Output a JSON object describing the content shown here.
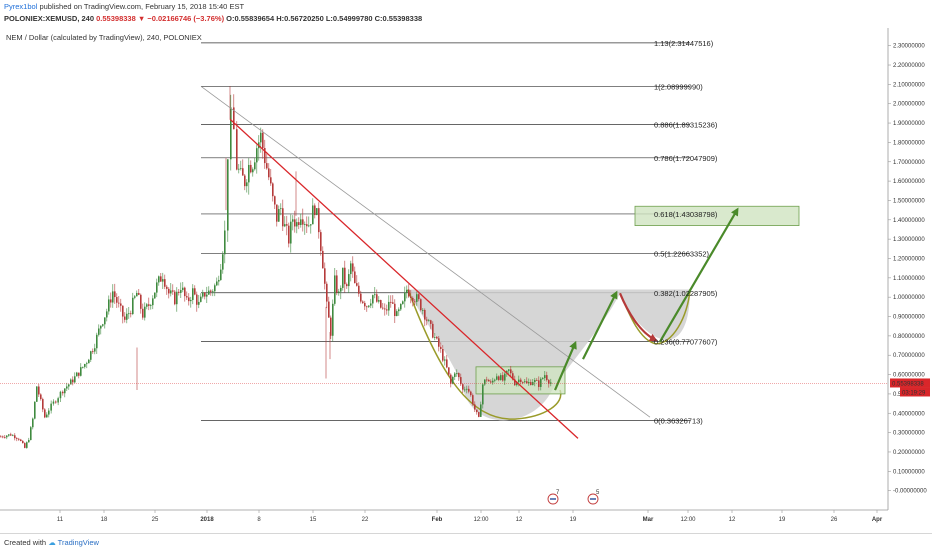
{
  "header": {
    "author": "Pyrex1bol",
    "published": "published on TradingView.com, February 15, 2018 15:40 EST",
    "symbol": "POLONIEX:XEMUSD, 240",
    "change": "0.55398338 ▼ −0.02166746 (−3.76%)",
    "ohlc": "O:0.55839654 H:0.56720250 L:0.54999780 C:0.55398338"
  },
  "footer": {
    "created_with": "Created with",
    "brand": "TradingView"
  },
  "colors": {
    "up": "#3f8a3f",
    "down": "#b53a3a",
    "trend": "#d9262a",
    "arrow": "#4a8a2a",
    "box_fill": "#d2e6c8",
    "cup_fill": "#c8c8c8",
    "fib_line": "#333333"
  },
  "chart_data": {
    "type": "candlestick",
    "title": "NEM / Dollar (calculated by TradingView), 240, POLONIEX",
    "y_axis": {
      "min": -0.1,
      "max": 2.35,
      "ticks": [
        "-0.00000000",
        "0.10000000",
        "0.20000000",
        "0.30000000",
        "0.40000000",
        "0.50000000",
        "0.60000000",
        "0.70000000",
        "0.80000000",
        "0.90000000",
        "1.00000000",
        "1.10000000",
        "1.20000000",
        "1.30000000",
        "1.40000000",
        "1.50000000",
        "1.60000000",
        "1.70000000",
        "1.80000000",
        "1.90000000",
        "2.00000000",
        "2.10000000",
        "2.20000000",
        "2.30000000"
      ],
      "tick_values": [
        0.0,
        0.1,
        0.2,
        0.3,
        0.4,
        0.5,
        0.6,
        0.7,
        0.8,
        0.9,
        1.0,
        1.1,
        1.2,
        1.3,
        1.4,
        1.5,
        1.6,
        1.7,
        1.8,
        1.9,
        2.0,
        2.1,
        2.2,
        2.3
      ]
    },
    "x_axis": {
      "labels": [
        "11",
        "18",
        "25",
        "2018",
        "8",
        "15",
        "22",
        "Feb",
        "12:00",
        "12",
        "19",
        "Mar",
        "12:00",
        "12",
        "19",
        "26",
        "Apr"
      ],
      "label_x": [
        60,
        104,
        155,
        207,
        259,
        313,
        365,
        437,
        481,
        519,
        573,
        648,
        688,
        732,
        782,
        834,
        877
      ]
    },
    "last_price": {
      "value": 0.55398338,
      "label": "0.55398338",
      "countdown": "03:19:29"
    },
    "fib_levels": [
      {
        "level": "0",
        "value": 0.36326713,
        "label": "0(0.36326713)"
      },
      {
        "level": "0.236",
        "value": 0.77077607,
        "label": "0.236(0.77077607)"
      },
      {
        "level": "0.382",
        "value": 1.02287905,
        "label": "0.382(1.02287905)"
      },
      {
        "level": "0.5",
        "value": 1.22663352,
        "label": "0.5(1.22663352)"
      },
      {
        "level": "0.618",
        "value": 1.43038798,
        "label": "0.618(1.43038798)"
      },
      {
        "level": "0.786",
        "value": 1.72047909,
        "label": "0.786(1.72047909)"
      },
      {
        "level": "0.886",
        "value": 1.89315236,
        "label": "0.886(1.89315236)"
      },
      {
        "level": "1",
        "value": 2.0899999,
        "label": "1(2.08999990)"
      },
      {
        "level": "1.13",
        "value": 2.31447516,
        "label": "1.13(2.31447516)"
      }
    ],
    "price_path": [
      [
        0,
        0.28
      ],
      [
        10,
        0.29
      ],
      [
        18,
        0.27
      ],
      [
        24,
        0.22
      ],
      [
        28,
        0.27
      ],
      [
        32,
        0.37
      ],
      [
        36,
        0.54
      ],
      [
        40,
        0.46
      ],
      [
        44,
        0.38
      ],
      [
        48,
        0.42
      ],
      [
        55,
        0.47
      ],
      [
        62,
        0.52
      ],
      [
        70,
        0.56
      ],
      [
        78,
        0.61
      ],
      [
        86,
        0.67
      ],
      [
        94,
        0.76
      ],
      [
        100,
        0.86
      ],
      [
        106,
        0.93
      ],
      [
        112,
        1.03
      ],
      [
        118,
        0.95
      ],
      [
        124,
        0.88
      ],
      [
        130,
        0.94
      ],
      [
        136,
        1.02
      ],
      [
        142,
        0.91
      ],
      [
        148,
        0.96
      ],
      [
        156,
        1.06
      ],
      [
        162,
        1.12
      ],
      [
        168,
        1.02
      ],
      [
        174,
        0.99
      ],
      [
        180,
        1.06
      ],
      [
        186,
        0.97
      ],
      [
        192,
        1.03
      ],
      [
        198,
        0.96
      ],
      [
        204,
        1.02
      ],
      [
        210,
        1.03
      ],
      [
        216,
        1.07
      ],
      [
        220,
        1.18
      ],
      [
        224,
        1.33
      ],
      [
        227,
        1.75
      ],
      [
        230,
        1.92
      ],
      [
        233,
        1.86
      ],
      [
        236,
        1.68
      ],
      [
        240,
        1.62
      ],
      [
        244,
        1.6
      ],
      [
        248,
        1.68
      ],
      [
        252,
        1.7
      ],
      [
        256,
        1.78
      ],
      [
        260,
        1.83
      ],
      [
        264,
        1.72
      ],
      [
        268,
        1.62
      ],
      [
        272,
        1.5
      ],
      [
        276,
        1.41
      ],
      [
        280,
        1.46
      ],
      [
        284,
        1.36
      ],
      [
        288,
        1.3
      ],
      [
        292,
        1.41
      ],
      [
        296,
        1.38
      ],
      [
        300,
        1.44
      ],
      [
        304,
        1.4
      ],
      [
        308,
        1.38
      ],
      [
        314,
        1.47
      ],
      [
        318,
        1.36
      ],
      [
        322,
        1.18
      ],
      [
        326,
        0.95
      ],
      [
        330,
        0.82
      ],
      [
        334,
        1.08
      ],
      [
        338,
        1.01
      ],
      [
        342,
        1.12
      ],
      [
        346,
        1.04
      ],
      [
        350,
        1.17
      ],
      [
        354,
        1.06
      ],
      [
        360,
        1.0
      ],
      [
        366,
        0.96
      ],
      [
        372,
        1.01
      ],
      [
        378,
        0.96
      ],
      [
        384,
        0.92
      ],
      [
        390,
        0.98
      ],
      [
        396,
        0.9
      ],
      [
        402,
        0.96
      ],
      [
        406,
        1.04
      ],
      [
        410,
        1.02
      ],
      [
        416,
        0.99
      ],
      [
        422,
        0.94
      ],
      [
        428,
        0.86
      ],
      [
        434,
        0.79
      ],
      [
        440,
        0.72
      ],
      [
        446,
        0.63
      ],
      [
        450,
        0.55
      ],
      [
        454,
        0.62
      ],
      [
        458,
        0.58
      ],
      [
        462,
        0.52
      ],
      [
        466,
        0.54
      ],
      [
        470,
        0.49
      ],
      [
        474,
        0.42
      ],
      [
        478,
        0.37
      ],
      [
        482,
        0.55
      ],
      [
        486,
        0.58
      ],
      [
        490,
        0.55
      ],
      [
        496,
        0.6
      ],
      [
        502,
        0.57
      ],
      [
        508,
        0.62
      ],
      [
        514,
        0.56
      ],
      [
        520,
        0.58
      ],
      [
        526,
        0.55
      ],
      [
        532,
        0.57
      ],
      [
        538,
        0.55
      ],
      [
        544,
        0.6
      ],
      [
        548,
        0.57
      ],
      [
        552,
        0.55
      ]
    ]
  }
}
